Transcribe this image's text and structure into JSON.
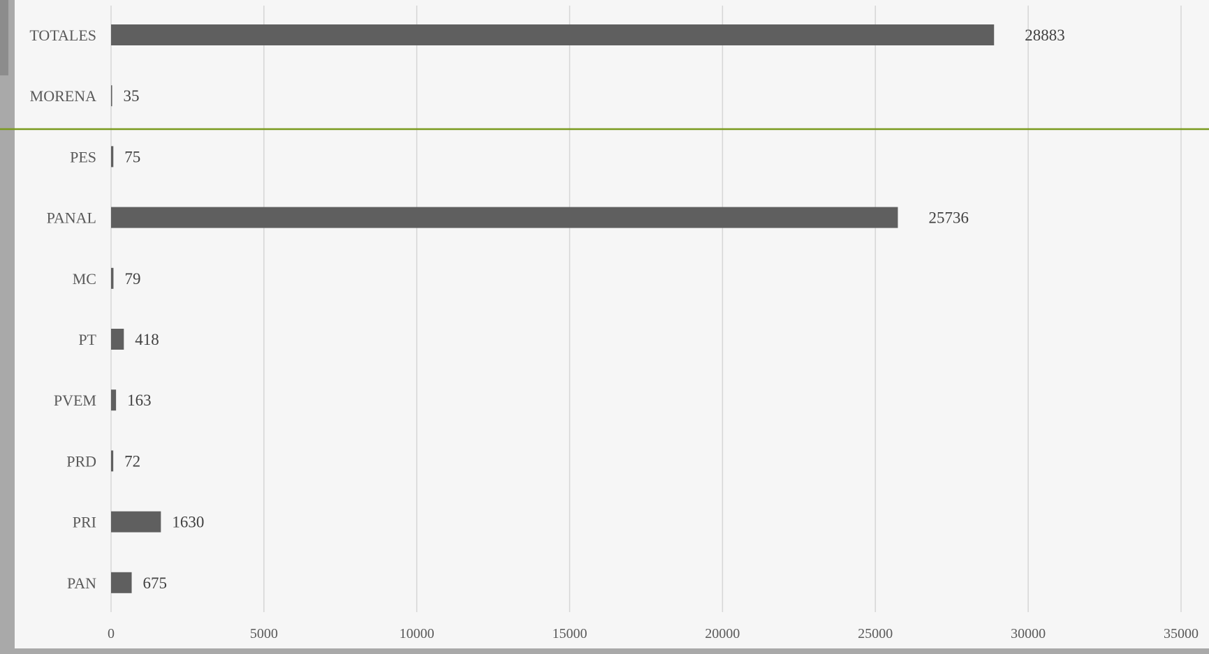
{
  "chart_data": {
    "type": "bar",
    "orientation": "horizontal",
    "categories": [
      "TOTALES",
      "MORENA",
      "PES",
      "PANAL",
      "MC",
      "PT",
      "PVEM",
      "PRD",
      "PRI",
      "PAN"
    ],
    "values": [
      28883,
      35,
      75,
      25736,
      79,
      418,
      163,
      72,
      1630,
      675
    ],
    "value_labels": [
      "28883",
      "35",
      "75",
      "25736",
      "79",
      "418",
      "163",
      "72",
      "1630",
      "675"
    ],
    "xticks": [
      "0",
      "5000",
      "10000",
      "15000",
      "20000",
      "25000",
      "30000",
      "35000"
    ],
    "xlim": [
      0,
      35000
    ],
    "grid": "vertical",
    "colors": {
      "bar": "#5f5f5f",
      "gridline": "#d6d6d6",
      "accent_line": "#7a9a1e",
      "background": "#f6f6f6",
      "frame": "#a9a9a9"
    },
    "title": "",
    "xlabel": "",
    "ylabel": ""
  }
}
